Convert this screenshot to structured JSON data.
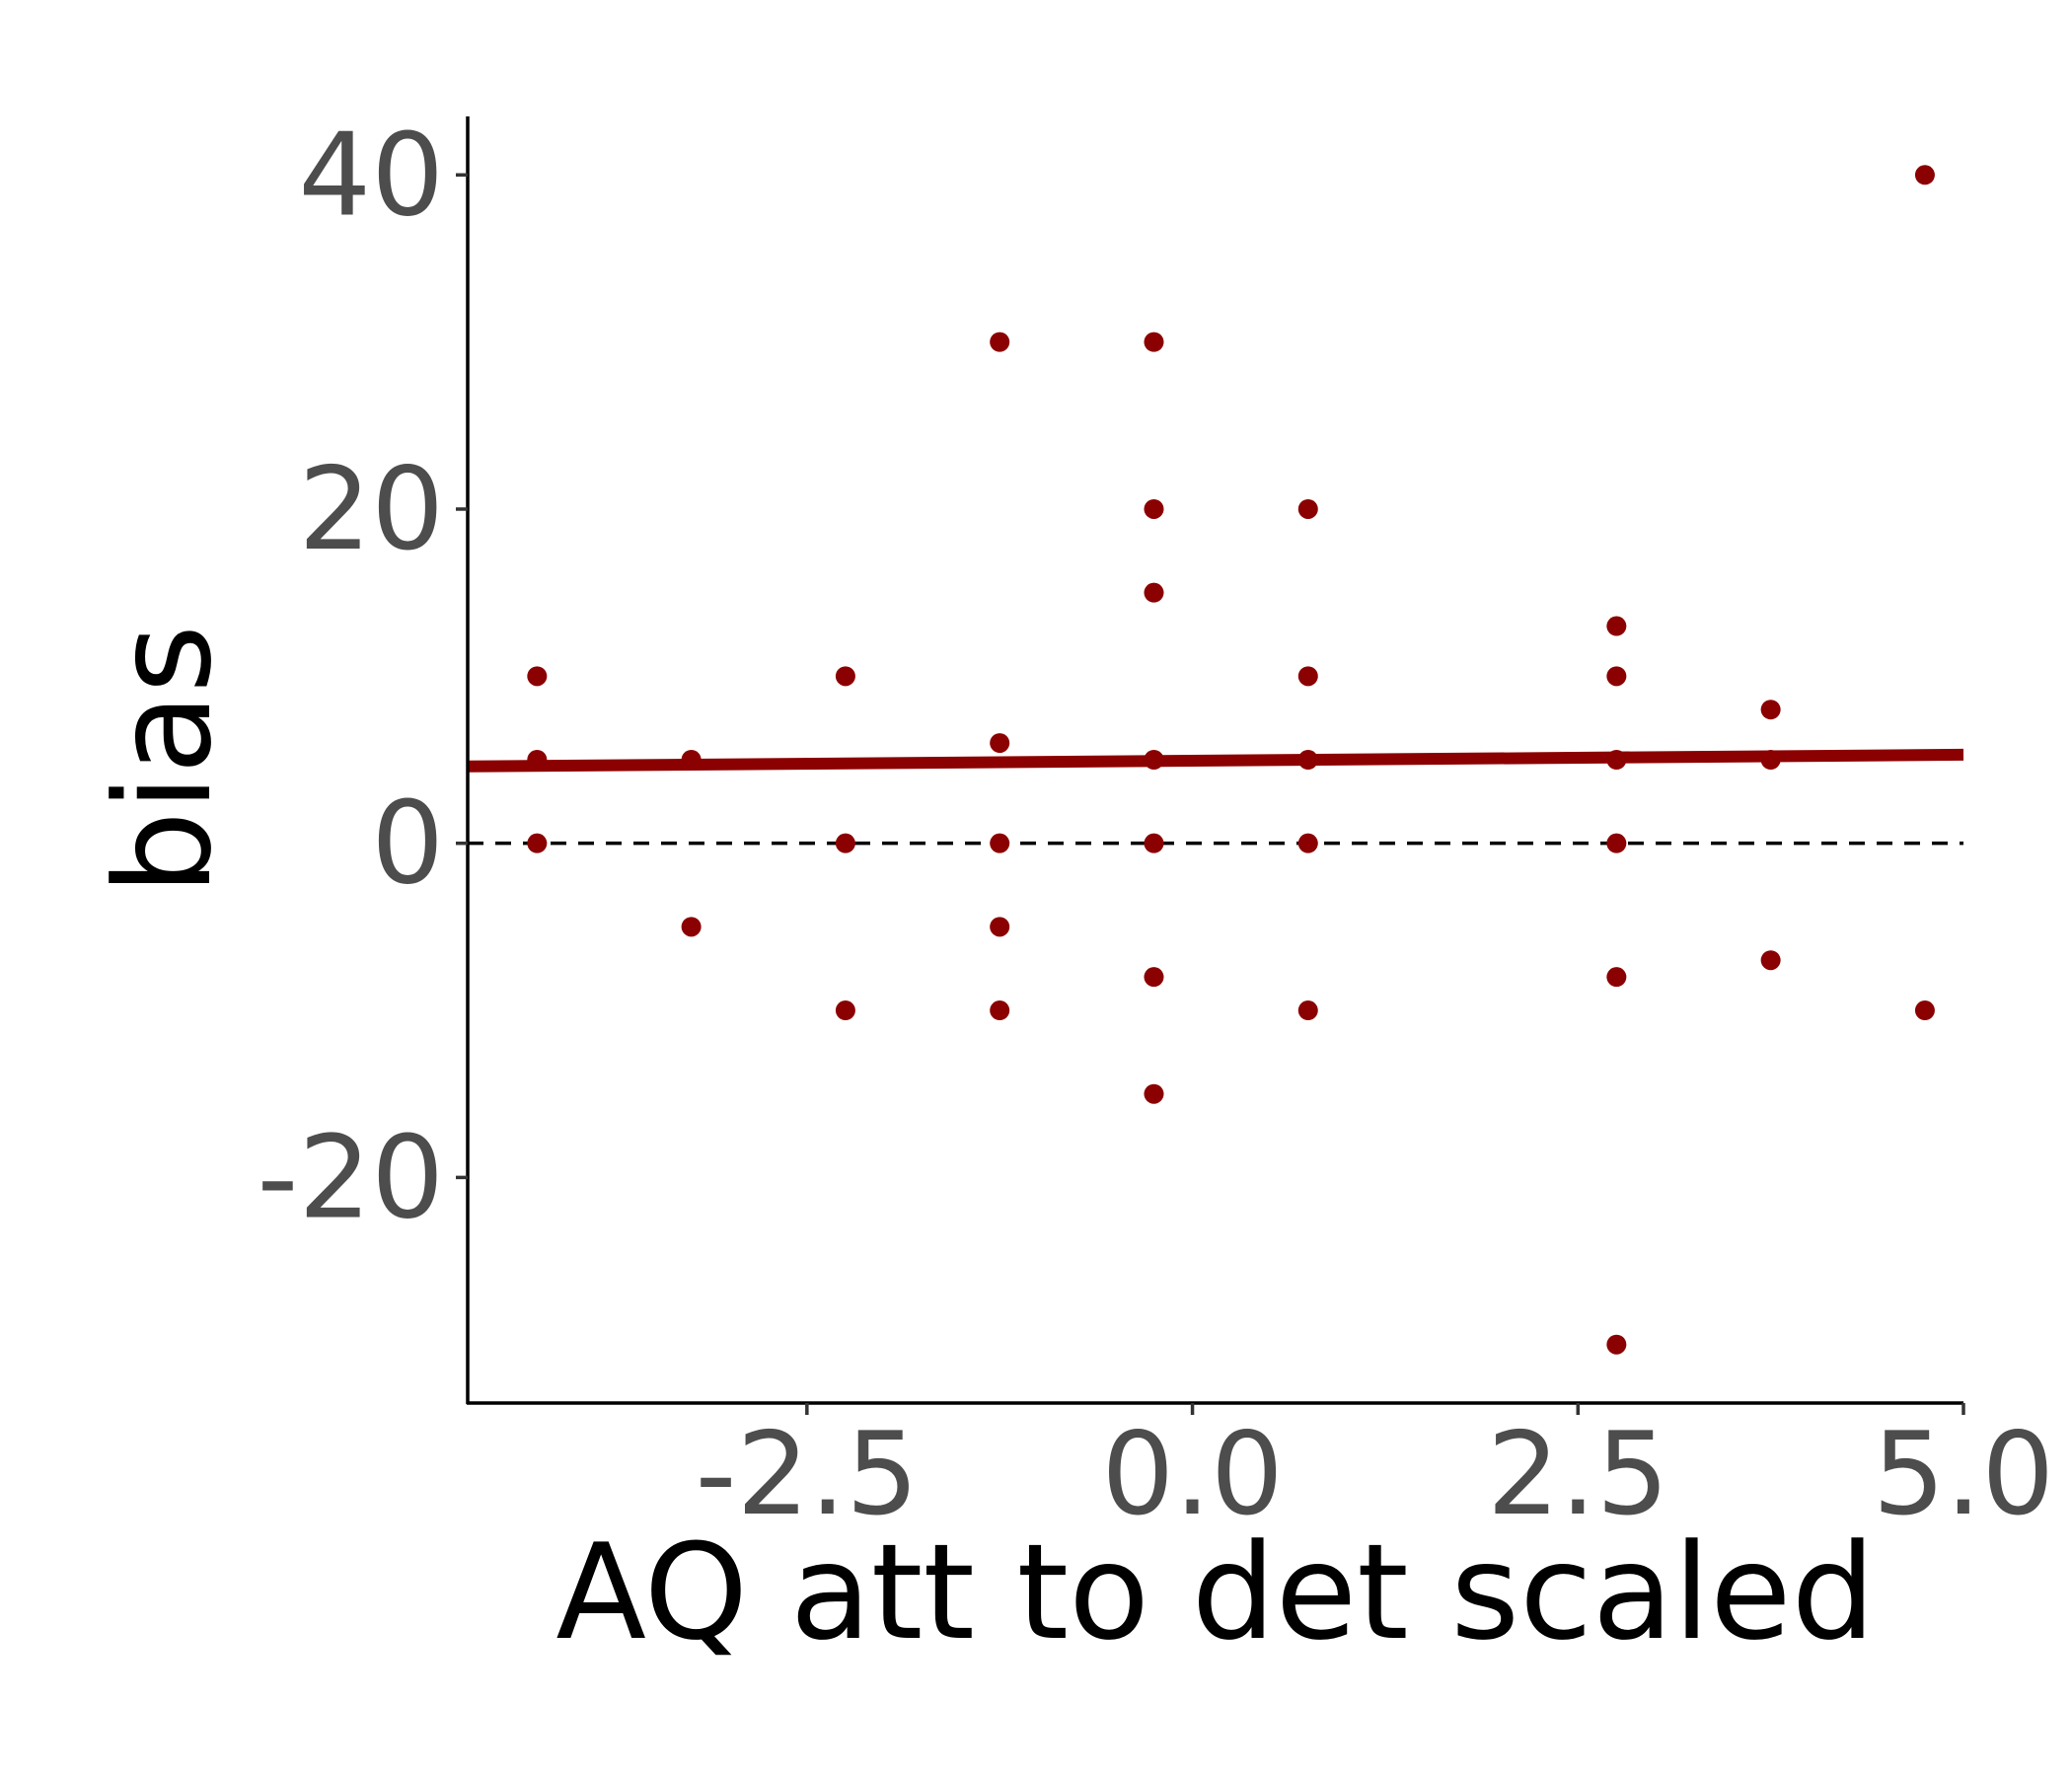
{
  "chart_data": {
    "type": "scatter",
    "xlabel": "AQ att to det scaled",
    "ylabel": "bias",
    "xlim": [
      -4.7,
      5.0
    ],
    "ylim": [
      -33.5,
      43.5
    ],
    "xticks": [
      {
        "value": -2.5,
        "label": "-2.5"
      },
      {
        "value": 0.0,
        "label": "0.0"
      },
      {
        "value": 2.5,
        "label": "2.5"
      },
      {
        "value": 5.0,
        "label": "5.0"
      }
    ],
    "yticks": [
      {
        "value": -20,
        "label": "-20"
      },
      {
        "value": 0,
        "label": "0"
      },
      {
        "value": 20,
        "label": "20"
      },
      {
        "value": 40,
        "label": "40"
      }
    ],
    "grid": false,
    "colors": {
      "points": "#8b0000",
      "fit_line": "#8b0000",
      "reference_line": "#000000"
    },
    "points": [
      {
        "x": -4.25,
        "y": 10
      },
      {
        "x": -4.25,
        "y": 5
      },
      {
        "x": -4.25,
        "y": 0
      },
      {
        "x": -3.25,
        "y": 5
      },
      {
        "x": -3.25,
        "y": -5
      },
      {
        "x": -2.25,
        "y": 10
      },
      {
        "x": -2.25,
        "y": 0
      },
      {
        "x": -2.25,
        "y": -10
      },
      {
        "x": -1.25,
        "y": 30
      },
      {
        "x": -1.25,
        "y": 6
      },
      {
        "x": -1.25,
        "y": 0
      },
      {
        "x": -1.25,
        "y": -5
      },
      {
        "x": -1.25,
        "y": -10
      },
      {
        "x": -0.25,
        "y": 30
      },
      {
        "x": -0.25,
        "y": 20
      },
      {
        "x": -0.25,
        "y": 15
      },
      {
        "x": -0.25,
        "y": 5
      },
      {
        "x": -0.25,
        "y": 0
      },
      {
        "x": -0.25,
        "y": -8
      },
      {
        "x": -0.25,
        "y": -15
      },
      {
        "x": 0.75,
        "y": 20
      },
      {
        "x": 0.75,
        "y": 10
      },
      {
        "x": 0.75,
        "y": 5
      },
      {
        "x": 0.75,
        "y": 0
      },
      {
        "x": 0.75,
        "y": -10
      },
      {
        "x": 2.75,
        "y": 13
      },
      {
        "x": 2.75,
        "y": 10
      },
      {
        "x": 2.75,
        "y": 5
      },
      {
        "x": 2.75,
        "y": 0
      },
      {
        "x": 2.75,
        "y": -8
      },
      {
        "x": 2.75,
        "y": -30
      },
      {
        "x": 3.75,
        "y": 8
      },
      {
        "x": 3.75,
        "y": 5
      },
      {
        "x": 3.75,
        "y": -7
      },
      {
        "x": 4.75,
        "y": 40
      },
      {
        "x": 4.75,
        "y": -10
      }
    ],
    "fit_line": {
      "x": [
        -4.7,
        5.0
      ],
      "y": [
        4.6,
        5.3
      ]
    },
    "reference_line": {
      "y": 0,
      "style": "dashed"
    }
  }
}
